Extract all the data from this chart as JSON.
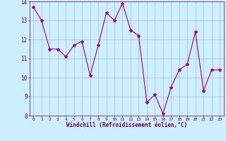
{
  "hours": [
    0,
    1,
    2,
    3,
    4,
    5,
    6,
    7,
    8,
    9,
    10,
    11,
    12,
    13,
    14,
    15,
    16,
    17,
    18,
    19,
    20,
    21,
    22,
    23
  ],
  "values": [
    13.7,
    13.0,
    11.5,
    11.5,
    11.1,
    11.7,
    11.9,
    10.1,
    11.7,
    13.4,
    13.0,
    13.9,
    12.5,
    12.2,
    8.7,
    9.1,
    8.1,
    9.5,
    10.4,
    10.7,
    12.4,
    9.3,
    10.4,
    10.4
  ],
  "xlabel": "Windchill (Refroidissement éolien,°C)",
  "ylabel": "",
  "ylim": [
    8,
    14
  ],
  "xlim": [
    -0.5,
    23.5
  ],
  "yticks": [
    8,
    9,
    10,
    11,
    12,
    13,
    14
  ],
  "xticks": [
    0,
    1,
    2,
    3,
    4,
    5,
    6,
    7,
    8,
    9,
    10,
    11,
    12,
    13,
    14,
    15,
    16,
    17,
    18,
    19,
    20,
    21,
    22,
    23
  ],
  "line_color": "#990099",
  "marker": "*",
  "bg_color": "#cceeff",
  "grid_color": "#aaaacc",
  "label_color": "#660066",
  "tick_color": "#660066"
}
